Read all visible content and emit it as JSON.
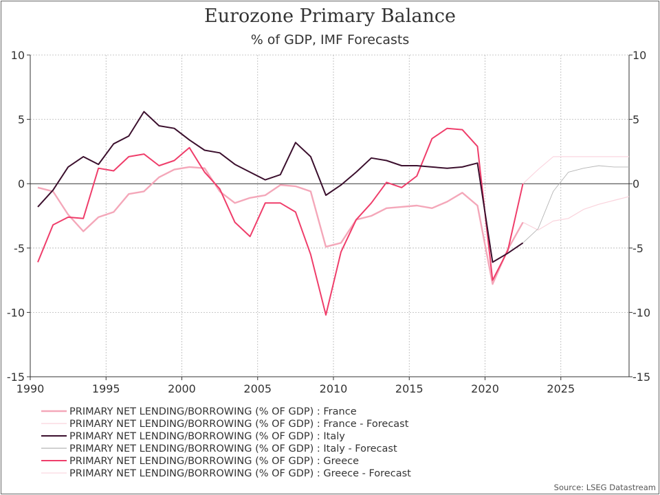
{
  "colors": {
    "france": "#f4a7b9",
    "france_forecast": "#fad3dc",
    "italy": "#3b0f2d",
    "italy_forecast": "#b5b5b5",
    "greece": "#ef3d6a",
    "greece_forecast": "#fbd6e0",
    "grid": "#b5b5b5",
    "zero_line": "#333333"
  },
  "chart_data": {
    "type": "line",
    "title": "Eurozone Primary Balance",
    "subtitle": "% of GDP, IMF Forecasts",
    "xlim": [
      1990,
      2029.5
    ],
    "ylim": [
      -15,
      10
    ],
    "x_ticks": [
      1990,
      1995,
      2000,
      2005,
      2010,
      2015,
      2020,
      2025
    ],
    "y_ticks": [
      10,
      5,
      0,
      -5,
      -10,
      -15
    ],
    "y_tick_labels": [
      "10",
      "5",
      "0",
      "-5",
      "-10",
      "-15"
    ],
    "grid": true,
    "legend_position": "bottom-left",
    "source": "Source: LSEG Datastream",
    "series": [
      {
        "key": "france",
        "name": "PRIMARY NET LENDING/BORROWING (% OF GDP) : France",
        "x": [
          1990.5,
          1991.5,
          1992.5,
          1993.5,
          1994.5,
          1995.5,
          1996.5,
          1997.5,
          1998.5,
          1999.5,
          2000.5,
          2001.5,
          2002.5,
          2003.5,
          2004.5,
          2005.5,
          2006.5,
          2007.5,
          2008.5,
          2009.5,
          2010.5,
          2011.5,
          2012.5,
          2013.5,
          2014.5,
          2015.5,
          2016.5,
          2017.5,
          2018.5,
          2019.5,
          2020.5,
          2021.5,
          2022.5
        ],
        "y": [
          -0.3,
          -0.6,
          -2.4,
          -3.7,
          -2.6,
          -2.2,
          -0.8,
          -0.6,
          0.5,
          1.1,
          1.3,
          1.2,
          -0.6,
          -1.5,
          -1.1,
          -0.9,
          -0.1,
          -0.2,
          -0.6,
          -4.9,
          -4.6,
          -2.8,
          -2.5,
          -1.9,
          -1.8,
          -1.7,
          -1.9,
          -1.4,
          -0.7,
          -1.7,
          -7.8,
          -5.1,
          -3.0
        ]
      },
      {
        "key": "france_forecast",
        "name": "PRIMARY NET LENDING/BORROWING (% OF GDP) : France - Forecast",
        "x": [
          2022.5,
          2023.5,
          2024.5,
          2025.5,
          2026.5,
          2027.5,
          2028.5,
          2029.5
        ],
        "y": [
          -3.0,
          -3.6,
          -2.9,
          -2.7,
          -2.0,
          -1.6,
          -1.3,
          -1.0
        ]
      },
      {
        "key": "italy",
        "name": "PRIMARY NET LENDING/BORROWING (% OF GDP) : Italy",
        "x": [
          1990.5,
          1991.5,
          1992.5,
          1993.5,
          1994.5,
          1995.5,
          1996.5,
          1997.5,
          1998.5,
          1999.5,
          2000.5,
          2001.5,
          2002.5,
          2003.5,
          2004.5,
          2005.5,
          2006.5,
          2007.5,
          2008.5,
          2009.5,
          2010.5,
          2011.5,
          2012.5,
          2013.5,
          2014.5,
          2015.5,
          2016.5,
          2017.5,
          2018.5,
          2019.5,
          2020.5,
          2021.5,
          2022.5
        ],
        "y": [
          -1.8,
          -0.5,
          1.3,
          2.1,
          1.5,
          3.1,
          3.7,
          5.6,
          4.5,
          4.3,
          3.4,
          2.6,
          2.4,
          1.5,
          0.9,
          0.3,
          0.7,
          3.2,
          2.1,
          -0.9,
          -0.1,
          0.9,
          2.0,
          1.8,
          1.4,
          1.4,
          1.3,
          1.2,
          1.3,
          1.6,
          -6.1,
          -5.4,
          -4.6
        ]
      },
      {
        "key": "italy_forecast",
        "name": "PRIMARY NET LENDING/BORROWING (% OF GDP) : Italy - Forecast",
        "x": [
          2022.5,
          2023.5,
          2024.5,
          2025.5,
          2026.5,
          2027.5,
          2028.5,
          2029.5
        ],
        "y": [
          -4.6,
          -3.5,
          -0.6,
          0.9,
          1.2,
          1.4,
          1.3,
          1.3
        ]
      },
      {
        "key": "greece",
        "name": "PRIMARY NET LENDING/BORROWING (% OF GDP) : Greece",
        "x": [
          1990.5,
          1991.5,
          1992.5,
          1993.5,
          1994.5,
          1995.5,
          1996.5,
          1997.5,
          1998.5,
          1999.5,
          2000.5,
          2001.5,
          2002.5,
          2003.5,
          2004.5,
          2005.5,
          2006.5,
          2007.5,
          2008.5,
          2009.5,
          2010.5,
          2011.5,
          2012.5,
          2013.5,
          2014.5,
          2015.5,
          2016.5,
          2017.5,
          2018.5,
          2019.5,
          2020.5,
          2021.5,
          2022.5
        ],
        "y": [
          -6.1,
          -3.2,
          -2.6,
          -2.7,
          1.2,
          1.0,
          2.1,
          2.3,
          1.4,
          1.8,
          2.8,
          0.9,
          -0.4,
          -3.0,
          -4.1,
          -1.5,
          -1.5,
          -2.2,
          -5.5,
          -10.2,
          -5.3,
          -2.8,
          -1.5,
          0.1,
          -0.3,
          0.6,
          3.5,
          4.3,
          4.2,
          2.9,
          -7.5,
          -5.2,
          0.0
        ]
      },
      {
        "key": "greece_forecast",
        "name": "PRIMARY NET LENDING/BORROWING (% OF GDP) : Greece - Forecast",
        "x": [
          2022.5,
          2023.5,
          2024.5,
          2025.5,
          2026.5,
          2027.5,
          2028.5,
          2029.5
        ],
        "y": [
          0.0,
          1.1,
          2.1,
          2.1,
          2.1,
          2.1,
          2.1,
          2.1
        ]
      }
    ]
  }
}
